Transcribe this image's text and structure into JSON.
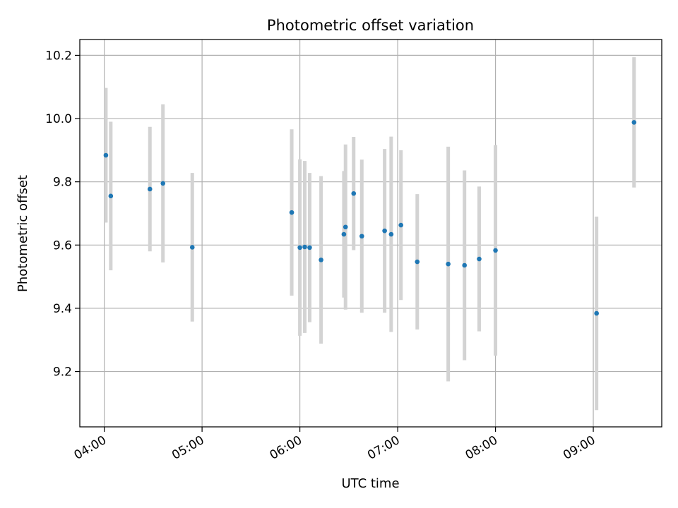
{
  "chart_data": {
    "type": "scatter",
    "title": "Photometric offset variation",
    "xlabel": "UTC time",
    "ylabel": "Photometric offset",
    "x_unit": "UTC time (HH:MM)",
    "xlim": [
      "03:45",
      "09:42"
    ],
    "ylim": [
      9.025,
      10.25
    ],
    "x_ticks": [
      "04:00",
      "05:00",
      "06:00",
      "07:00",
      "08:00",
      "09:00"
    ],
    "y_ticks": [
      "9.2",
      "9.4",
      "9.6",
      "9.8",
      "10.0",
      "10.2"
    ],
    "grid": true,
    "legend": "none",
    "marker_color": "#1f77b4",
    "errorbar_color": "#d3d3d3",
    "points": [
      {
        "time": "04:01",
        "y": 9.884,
        "err": 0.213
      },
      {
        "time": "04:04",
        "y": 9.755,
        "err": 0.235
      },
      {
        "time": "04:28",
        "y": 9.777,
        "err": 0.197
      },
      {
        "time": "04:36",
        "y": 9.795,
        "err": 0.25
      },
      {
        "time": "04:54",
        "y": 9.593,
        "err": 0.235
      },
      {
        "time": "05:55",
        "y": 9.703,
        "err": 0.263
      },
      {
        "time": "06:00",
        "y": 9.592,
        "err": 0.279
      },
      {
        "time": "06:03",
        "y": 9.594,
        "err": 0.272
      },
      {
        "time": "06:06",
        "y": 9.592,
        "err": 0.236
      },
      {
        "time": "06:13",
        "y": 9.553,
        "err": 0.265
      },
      {
        "time": "06:27",
        "y": 9.634,
        "err": 0.2
      },
      {
        "time": "06:28",
        "y": 9.657,
        "err": 0.261
      },
      {
        "time": "06:33",
        "y": 9.763,
        "err": 0.179
      },
      {
        "time": "06:38",
        "y": 9.628,
        "err": 0.242
      },
      {
        "time": "06:52",
        "y": 9.645,
        "err": 0.259
      },
      {
        "time": "06:56",
        "y": 9.634,
        "err": 0.309
      },
      {
        "time": "07:02",
        "y": 9.663,
        "err": 0.237
      },
      {
        "time": "07:12",
        "y": 9.547,
        "err": 0.214
      },
      {
        "time": "07:31",
        "y": 9.54,
        "err": 0.371
      },
      {
        "time": "07:41",
        "y": 9.536,
        "err": 0.3
      },
      {
        "time": "07:50",
        "y": 9.556,
        "err": 0.229
      },
      {
        "time": "08:00",
        "y": 9.583,
        "err": 0.333
      },
      {
        "time": "09:02",
        "y": 9.384,
        "err": 0.306
      },
      {
        "time": "09:25",
        "y": 9.988,
        "err": 0.206
      }
    ]
  }
}
